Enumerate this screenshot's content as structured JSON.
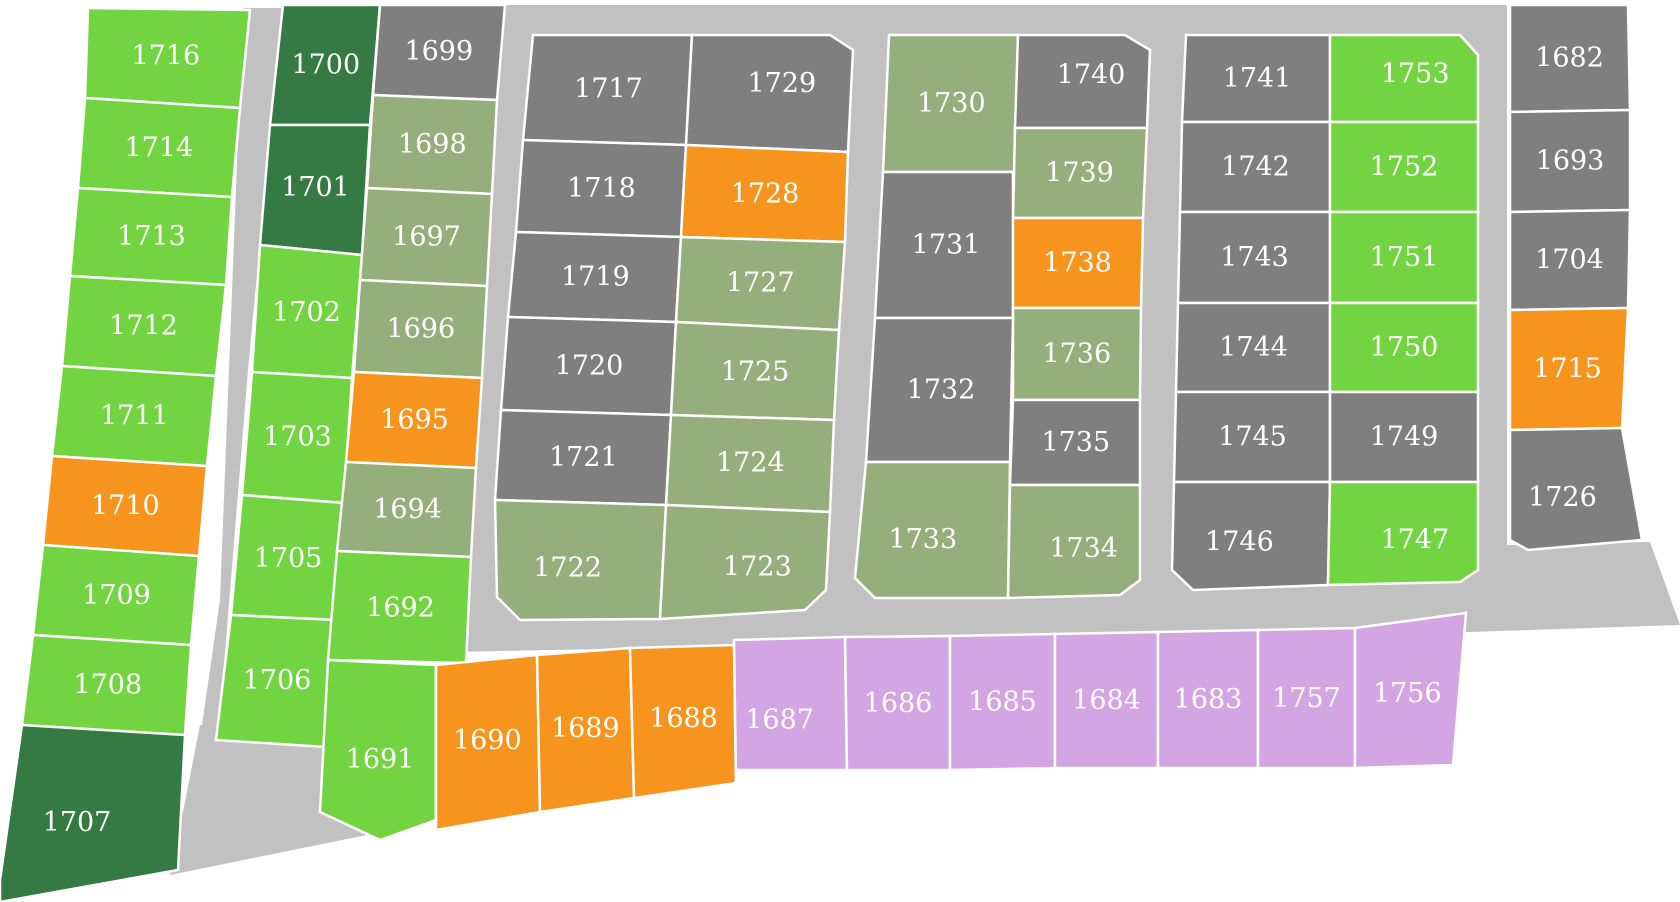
{
  "colors": {
    "road": "#c1c1c1",
    "gray": "#7f7f7f",
    "light_green": "#72d440",
    "sage": "#95af7c",
    "dark_green": "#357a42",
    "orange": "#f7941d",
    "lavender": "#d3a5e2"
  },
  "lots": [
    {
      "id": "1716",
      "label": "1716",
      "status": "light_green"
    },
    {
      "id": "1714",
      "label": "1714",
      "status": "light_green"
    },
    {
      "id": "1713",
      "label": "1713",
      "status": "light_green"
    },
    {
      "id": "1712",
      "label": "1712",
      "status": "light_green"
    },
    {
      "id": "1711",
      "label": "1711",
      "status": "light_green"
    },
    {
      "id": "1710",
      "label": "1710",
      "status": "orange"
    },
    {
      "id": "1709",
      "label": "1709",
      "status": "light_green"
    },
    {
      "id": "1708",
      "label": "1708",
      "status": "light_green"
    },
    {
      "id": "1707",
      "label": "1707",
      "status": "dark_green"
    },
    {
      "id": "1700",
      "label": "1700",
      "status": "dark_green"
    },
    {
      "id": "1701",
      "label": "1701",
      "status": "dark_green"
    },
    {
      "id": "1702",
      "label": "1702",
      "status": "light_green"
    },
    {
      "id": "1703",
      "label": "1703",
      "status": "light_green"
    },
    {
      "id": "1705",
      "label": "1705",
      "status": "light_green"
    },
    {
      "id": "1706",
      "label": "1706",
      "status": "light_green"
    },
    {
      "id": "1699",
      "label": "1699",
      "status": "gray"
    },
    {
      "id": "1698",
      "label": "1698",
      "status": "sage"
    },
    {
      "id": "1697",
      "label": "1697",
      "status": "sage"
    },
    {
      "id": "1696",
      "label": "1696",
      "status": "sage"
    },
    {
      "id": "1695",
      "label": "1695",
      "status": "orange"
    },
    {
      "id": "1694",
      "label": "1694",
      "status": "sage"
    },
    {
      "id": "1692",
      "label": "1692",
      "status": "light_green"
    },
    {
      "id": "1691",
      "label": "1691",
      "status": "light_green"
    },
    {
      "id": "1690",
      "label": "1690",
      "status": "orange"
    },
    {
      "id": "1689",
      "label": "1689",
      "status": "orange"
    },
    {
      "id": "1688",
      "label": "1688",
      "status": "orange"
    },
    {
      "id": "1687",
      "label": "1687",
      "status": "lavender"
    },
    {
      "id": "1686",
      "label": "1686",
      "status": "lavender"
    },
    {
      "id": "1685",
      "label": "1685",
      "status": "lavender"
    },
    {
      "id": "1684",
      "label": "1684",
      "status": "lavender"
    },
    {
      "id": "1683",
      "label": "1683",
      "status": "lavender"
    },
    {
      "id": "1757",
      "label": "1757",
      "status": "lavender"
    },
    {
      "id": "1756",
      "label": "1756",
      "status": "lavender"
    },
    {
      "id": "1717",
      "label": "1717",
      "status": "gray"
    },
    {
      "id": "1729",
      "label": "1729",
      "status": "gray"
    },
    {
      "id": "1718",
      "label": "1718",
      "status": "gray"
    },
    {
      "id": "1728",
      "label": "1728",
      "status": "orange"
    },
    {
      "id": "1719",
      "label": "1719",
      "status": "gray"
    },
    {
      "id": "1727",
      "label": "1727",
      "status": "sage"
    },
    {
      "id": "1720",
      "label": "1720",
      "status": "gray"
    },
    {
      "id": "1725",
      "label": "1725",
      "status": "sage"
    },
    {
      "id": "1721",
      "label": "1721",
      "status": "gray"
    },
    {
      "id": "1724",
      "label": "1724",
      "status": "sage"
    },
    {
      "id": "1722",
      "label": "1722",
      "status": "sage"
    },
    {
      "id": "1723",
      "label": "1723",
      "status": "sage"
    },
    {
      "id": "1730",
      "label": "1730",
      "status": "sage"
    },
    {
      "id": "1740",
      "label": "1740",
      "status": "gray"
    },
    {
      "id": "1739",
      "label": "1739",
      "status": "sage"
    },
    {
      "id": "1731",
      "label": "1731",
      "status": "gray"
    },
    {
      "id": "1738",
      "label": "1738",
      "status": "orange"
    },
    {
      "id": "1736",
      "label": "1736",
      "status": "sage"
    },
    {
      "id": "1732",
      "label": "1732",
      "status": "gray"
    },
    {
      "id": "1735",
      "label": "1735",
      "status": "gray"
    },
    {
      "id": "1733",
      "label": "1733",
      "status": "sage"
    },
    {
      "id": "1734",
      "label": "1734",
      "status": "sage"
    },
    {
      "id": "1741",
      "label": "1741",
      "status": "gray"
    },
    {
      "id": "1753",
      "label": "1753",
      "status": "light_green"
    },
    {
      "id": "1742",
      "label": "1742",
      "status": "gray"
    },
    {
      "id": "1752",
      "label": "1752",
      "status": "light_green"
    },
    {
      "id": "1743",
      "label": "1743",
      "status": "gray"
    },
    {
      "id": "1751",
      "label": "1751",
      "status": "light_green"
    },
    {
      "id": "1744",
      "label": "1744",
      "status": "gray"
    },
    {
      "id": "1750",
      "label": "1750",
      "status": "light_green"
    },
    {
      "id": "1745",
      "label": "1745",
      "status": "gray"
    },
    {
      "id": "1749",
      "label": "1749",
      "status": "gray"
    },
    {
      "id": "1746",
      "label": "1746",
      "status": "gray"
    },
    {
      "id": "1747",
      "label": "1747",
      "status": "light_green"
    },
    {
      "id": "1682",
      "label": "1682",
      "status": "gray"
    },
    {
      "id": "1693",
      "label": "1693",
      "status": "gray"
    },
    {
      "id": "1704",
      "label": "1704",
      "status": "gray"
    },
    {
      "id": "1715",
      "label": "1715",
      "status": "orange"
    },
    {
      "id": "1726",
      "label": "1726",
      "status": "gray"
    }
  ]
}
